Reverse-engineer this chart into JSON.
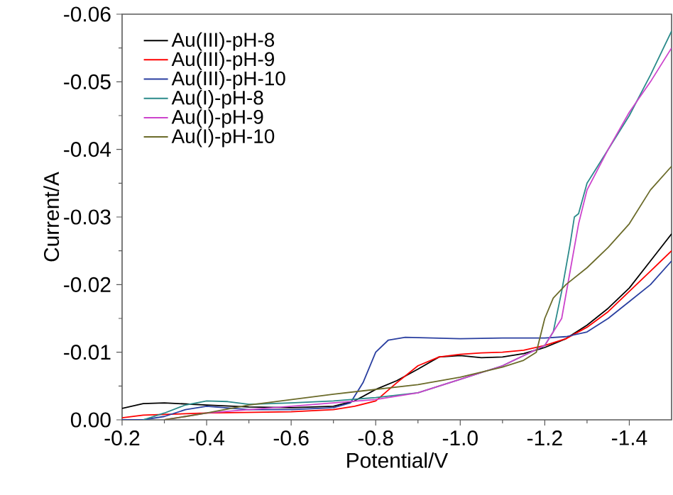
{
  "chart_data": {
    "type": "line",
    "xlabel": "Potential/V",
    "ylabel": "Current/A",
    "xlim": [
      -0.2,
      -1.5
    ],
    "ylim": [
      0,
      -0.06
    ],
    "xticks": [
      {
        "value": -0.2,
        "label": "-0.2"
      },
      {
        "value": -0.4,
        "label": "-0.4"
      },
      {
        "value": -0.6,
        "label": "-0.6"
      },
      {
        "value": -0.8,
        "label": "-0.8"
      },
      {
        "value": -1.0,
        "label": "-1.0"
      },
      {
        "value": -1.2,
        "label": "-1.2"
      },
      {
        "value": -1.4,
        "label": "-1.4"
      }
    ],
    "yticks": [
      {
        "value": 0,
        "label": "0.00"
      },
      {
        "value": -0.01,
        "label": "-0.01"
      },
      {
        "value": -0.02,
        "label": "-0.02"
      },
      {
        "value": -0.03,
        "label": "-0.03"
      },
      {
        "value": -0.04,
        "label": "-0.04"
      },
      {
        "value": -0.05,
        "label": "-0.05"
      },
      {
        "value": -0.06,
        "label": "-0.06"
      }
    ],
    "grid": false,
    "legend": "top left",
    "marker": "none",
    "line_style": "solid",
    "series": [
      {
        "name": "Au(III)-pH-8",
        "color": "#000000",
        "x": [
          -0.2,
          -0.25,
          -0.3,
          -0.4,
          -0.5,
          -0.6,
          -0.7,
          -0.75,
          -0.8,
          -0.85,
          -0.9,
          -0.95,
          -1.0,
          -1.05,
          -1.1,
          -1.15,
          -1.2,
          -1.25,
          -1.3,
          -1.35,
          -1.4,
          -1.45,
          -1.5
        ],
        "values": [
          -0.0017,
          -0.0024,
          -0.0025,
          -0.0022,
          -0.0019,
          -0.0018,
          -0.002,
          -0.0028,
          -0.0045,
          -0.0058,
          -0.0075,
          -0.0093,
          -0.0095,
          -0.0092,
          -0.0093,
          -0.0098,
          -0.0107,
          -0.012,
          -0.014,
          -0.0165,
          -0.0195,
          -0.0235,
          -0.0275
        ]
      },
      {
        "name": "Au(III)-pH-9",
        "color": "#ff0000",
        "x": [
          -0.2,
          -0.25,
          -0.3,
          -0.4,
          -0.5,
          -0.6,
          -0.7,
          -0.75,
          -0.8,
          -0.85,
          -0.9,
          -0.95,
          -1.0,
          -1.05,
          -1.1,
          -1.15,
          -1.2,
          -1.25,
          -1.3,
          -1.35,
          -1.4,
          -1.45,
          -1.5
        ],
        "values": [
          -0.0003,
          -0.0007,
          -0.0008,
          -0.001,
          -0.0011,
          -0.0012,
          -0.0015,
          -0.002,
          -0.0028,
          -0.0055,
          -0.008,
          -0.0093,
          -0.0097,
          -0.0099,
          -0.01,
          -0.0103,
          -0.011,
          -0.012,
          -0.0137,
          -0.016,
          -0.019,
          -0.022,
          -0.025
        ]
      },
      {
        "name": "Au(III)-pH-10",
        "color": "#2a3fa0",
        "x": [
          -0.2,
          -0.25,
          -0.3,
          -0.35,
          -0.4,
          -0.5,
          -0.6,
          -0.7,
          -0.74,
          -0.77,
          -0.8,
          -0.83,
          -0.87,
          -1.0,
          -1.1,
          -1.2,
          -1.25,
          -1.3,
          -1.35,
          -1.4,
          -1.45,
          -1.5
        ],
        "values": [
          0,
          0,
          -0.0005,
          -0.0015,
          -0.002,
          -0.0015,
          -0.0015,
          -0.0018,
          -0.0025,
          -0.0055,
          -0.01,
          -0.0118,
          -0.0122,
          -0.012,
          -0.0121,
          -0.0121,
          -0.0123,
          -0.013,
          -0.015,
          -0.0175,
          -0.02,
          -0.0235
        ]
      },
      {
        "name": "Au(I)-pH-8",
        "color": "#2a8a8a",
        "x": [
          -0.25,
          -0.3,
          -0.35,
          -0.4,
          -0.45,
          -0.5,
          -0.6,
          -0.7,
          -0.8,
          -0.9,
          -1.0,
          -1.1,
          -1.15,
          -1.2,
          -1.22,
          -1.24,
          -1.26,
          -1.27,
          -1.28,
          -1.3,
          -1.35,
          -1.4,
          -1.45,
          -1.5
        ],
        "values": [
          0,
          -0.001,
          -0.0022,
          -0.0028,
          -0.0027,
          -0.0023,
          -0.0025,
          -0.0028,
          -0.0033,
          -0.004,
          -0.006,
          -0.008,
          -0.0095,
          -0.011,
          -0.013,
          -0.019,
          -0.026,
          -0.03,
          -0.0305,
          -0.035,
          -0.04,
          -0.045,
          -0.051,
          -0.0575
        ]
      },
      {
        "name": "Au(I)-pH-9",
        "color": "#cc44cc",
        "x": [
          -0.3,
          -0.35,
          -0.4,
          -0.5,
          -0.6,
          -0.7,
          -0.8,
          -0.9,
          -1.0,
          -1.1,
          -1.2,
          -1.24,
          -1.26,
          -1.28,
          -1.3,
          -1.35,
          -1.4,
          -1.45,
          -1.5
        ],
        "values": [
          0,
          -0.0005,
          -0.001,
          -0.0015,
          -0.002,
          -0.0025,
          -0.003,
          -0.004,
          -0.006,
          -0.008,
          -0.011,
          -0.015,
          -0.022,
          -0.029,
          -0.034,
          -0.04,
          -0.0455,
          -0.05,
          -0.055
        ]
      },
      {
        "name": "Au(I)-pH-10",
        "color": "#6b6b2a",
        "x": [
          -0.3,
          -0.35,
          -0.4,
          -0.5,
          -0.6,
          -0.7,
          -0.8,
          -0.9,
          -1.0,
          -1.1,
          -1.15,
          -1.18,
          -1.2,
          -1.22,
          -1.25,
          -1.3,
          -1.35,
          -1.4,
          -1.45,
          -1.5
        ],
        "values": [
          0,
          -0.0005,
          -0.001,
          -0.0022,
          -0.003,
          -0.0038,
          -0.0045,
          -0.0052,
          -0.0063,
          -0.0078,
          -0.0088,
          -0.01,
          -0.015,
          -0.018,
          -0.02,
          -0.0225,
          -0.0255,
          -0.029,
          -0.034,
          -0.0375
        ]
      }
    ]
  }
}
